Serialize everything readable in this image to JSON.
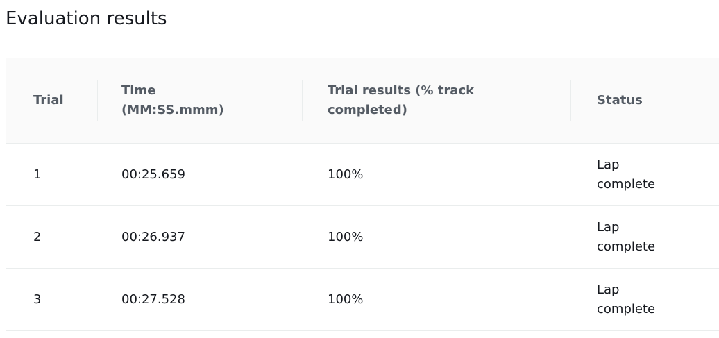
{
  "title": "Evaluation results",
  "table": {
    "headers": [
      "Trial",
      "Time (MM:SS.mmm)",
      "Trial results (% track completed)",
      "Status"
    ],
    "rows": [
      [
        "1",
        "00:25.659",
        "100%",
        "Lap complete"
      ],
      [
        "2",
        "00:26.937",
        "100%",
        "Lap complete"
      ],
      [
        "3",
        "00:27.528",
        "100%",
        "Lap complete"
      ]
    ]
  }
}
